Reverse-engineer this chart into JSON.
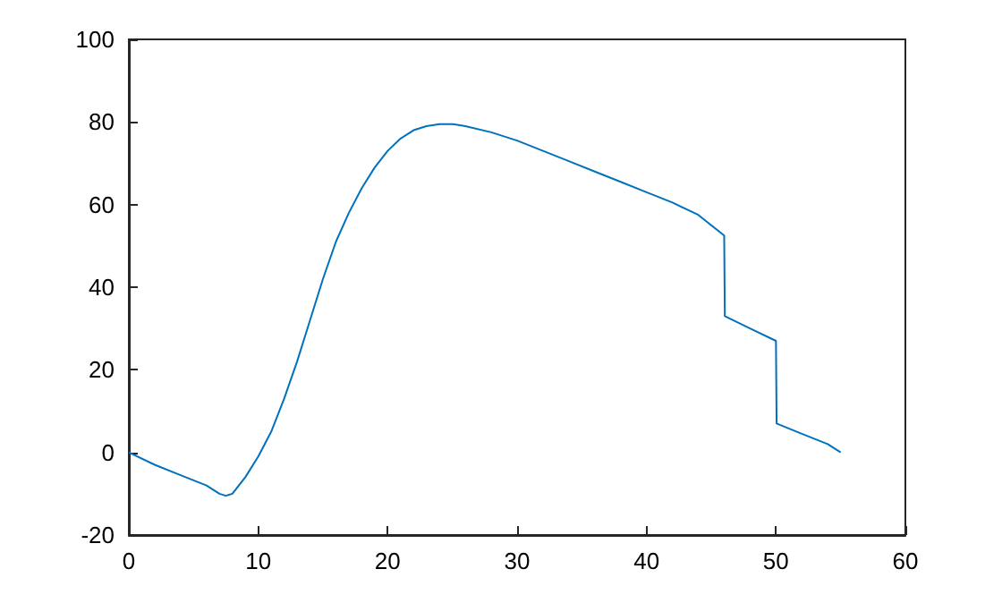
{
  "chart_data": {
    "type": "line",
    "grid": false,
    "marker": "none",
    "line_style": "solid",
    "xlim": [
      0,
      60
    ],
    "xticks": [
      0,
      10,
      20,
      30,
      40,
      50,
      60
    ],
    "ylim": [
      -20,
      100
    ],
    "yticks": [
      -20,
      0,
      20,
      40,
      60,
      80,
      100
    ],
    "x": [
      0,
      2,
      4,
      6,
      7,
      7.5,
      8,
      9,
      10,
      11,
      12,
      13,
      14,
      15,
      16,
      17,
      18,
      19,
      20,
      21,
      22,
      23,
      24,
      25,
      26,
      28,
      30,
      32,
      34,
      36,
      38,
      40,
      42,
      44,
      46,
      46.05,
      48,
      50,
      50.05,
      52,
      54,
      55
    ],
    "series": [
      {
        "color": "#0072bd",
        "values": [
          0,
          -3,
          -5.5,
          -8,
          -10,
          -10.5,
          -10,
          -6,
          -1,
          5,
          13,
          22,
          32,
          42,
          51,
          58,
          64,
          69,
          73,
          76,
          78,
          79,
          79.5,
          79.5,
          79,
          77.5,
          75.5,
          73,
          70.5,
          68,
          65.5,
          63,
          60.5,
          57.5,
          52.5,
          33,
          30,
          27,
          7,
          4.5,
          2,
          0
        ]
      }
    ]
  }
}
